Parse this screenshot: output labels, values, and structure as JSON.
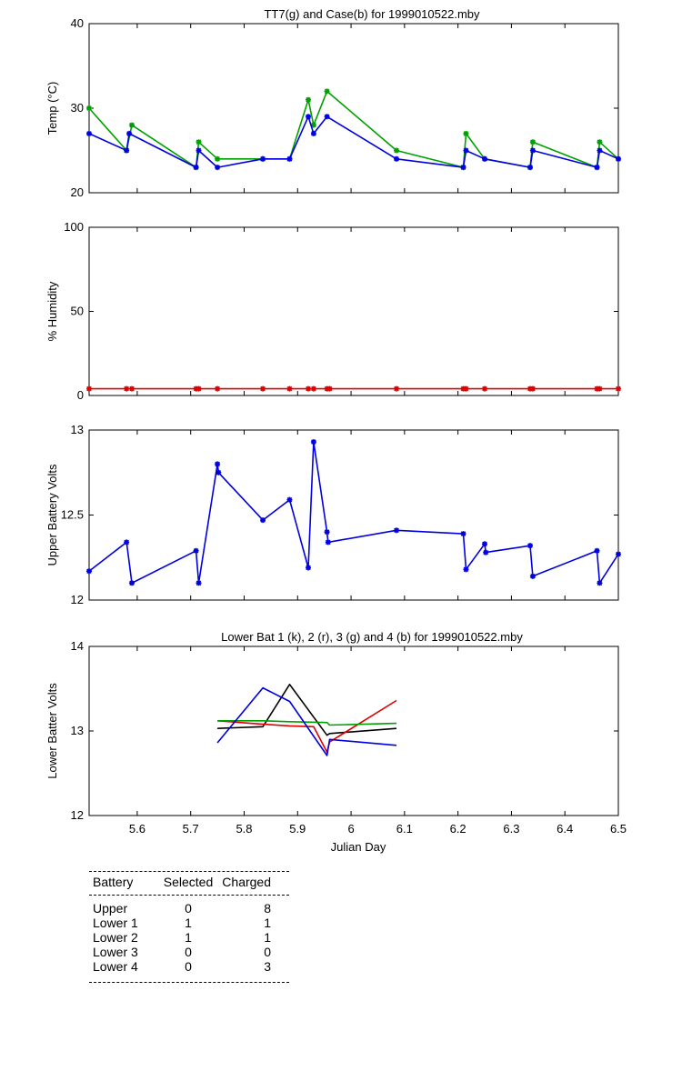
{
  "chart_data": [
    {
      "type": "line",
      "title": "TT7(g) and Case(b) for 1999010522.mby",
      "xlabel": "",
      "ylabel": "Temp (°C)",
      "xlim": [
        5.51,
        6.5
      ],
      "ylim": [
        20,
        40
      ],
      "yticks": [
        "20",
        "30",
        "40"
      ],
      "grid": false,
      "series": [
        {
          "color": "#00a000",
          "marker": "star",
          "points": [
            [
              5.51,
              30
            ],
            [
              5.58,
              25
            ],
            [
              5.59,
              28
            ],
            [
              5.71,
              23
            ],
            [
              5.715,
              26
            ],
            [
              5.75,
              24
            ],
            [
              5.835,
              24
            ],
            [
              5.885,
              24
            ],
            [
              5.92,
              31
            ],
            [
              5.93,
              28
            ],
            [
              5.955,
              32
            ],
            [
              6.085,
              25
            ],
            [
              6.21,
              23
            ],
            [
              6.215,
              27
            ],
            [
              6.25,
              24
            ],
            [
              6.335,
              23
            ],
            [
              6.34,
              26
            ],
            [
              6.46,
              23
            ],
            [
              6.465,
              26
            ],
            [
              6.5,
              24
            ]
          ]
        },
        {
          "color": "#0000e0",
          "marker": "star",
          "points": [
            [
              5.51,
              27
            ],
            [
              5.58,
              25
            ],
            [
              5.585,
              27
            ],
            [
              5.71,
              23
            ],
            [
              5.715,
              25
            ],
            [
              5.75,
              23
            ],
            [
              5.835,
              24
            ],
            [
              5.885,
              24
            ],
            [
              5.92,
              29
            ],
            [
              5.93,
              27
            ],
            [
              5.955,
              29
            ],
            [
              6.085,
              24
            ],
            [
              6.21,
              23
            ],
            [
              6.215,
              25
            ],
            [
              6.25,
              24
            ],
            [
              6.335,
              23
            ],
            [
              6.34,
              25
            ],
            [
              6.46,
              23
            ],
            [
              6.465,
              25
            ],
            [
              6.5,
              24
            ]
          ]
        }
      ]
    },
    {
      "type": "line",
      "title": "",
      "xlabel": "",
      "ylabel": "% Humidity",
      "xlim": [
        5.51,
        6.5
      ],
      "ylim": [
        0,
        100
      ],
      "yticks": [
        "0",
        "50",
        "100"
      ],
      "grid": false,
      "series": [
        {
          "color": "#e00000",
          "marker": "star",
          "points": [
            [
              5.51,
              4
            ],
            [
              5.58,
              4
            ],
            [
              5.59,
              4
            ],
            [
              5.71,
              4
            ],
            [
              5.715,
              4
            ],
            [
              5.75,
              4
            ],
            [
              5.835,
              4
            ],
            [
              5.885,
              4
            ],
            [
              5.92,
              4
            ],
            [
              5.93,
              4
            ],
            [
              5.955,
              4
            ],
            [
              5.96,
              4
            ],
            [
              6.085,
              4
            ],
            [
              6.21,
              4
            ],
            [
              6.215,
              4
            ],
            [
              6.25,
              4
            ],
            [
              6.335,
              4
            ],
            [
              6.34,
              4
            ],
            [
              6.46,
              4
            ],
            [
              6.465,
              4
            ],
            [
              6.5,
              4
            ]
          ]
        }
      ]
    },
    {
      "type": "line",
      "title": "",
      "xlabel": "",
      "ylabel": "Upper Battery Volts",
      "xlim": [
        5.51,
        6.5
      ],
      "ylim": [
        12,
        13
      ],
      "yticks": [
        "12",
        "12.5",
        "13"
      ],
      "grid": false,
      "series": [
        {
          "color": "#0000e0",
          "marker": "star",
          "points": [
            [
              5.51,
              12.17
            ],
            [
              5.58,
              12.34
            ],
            [
              5.59,
              12.1
            ],
            [
              5.71,
              12.29
            ],
            [
              5.715,
              12.1
            ],
            [
              5.75,
              12.8
            ],
            [
              5.752,
              12.75
            ],
            [
              5.835,
              12.47
            ],
            [
              5.885,
              12.59
            ],
            [
              5.92,
              12.19
            ],
            [
              5.93,
              12.93
            ],
            [
              5.955,
              12.4
            ],
            [
              5.957,
              12.34
            ],
            [
              6.085,
              12.41
            ],
            [
              6.21,
              12.39
            ],
            [
              6.215,
              12.18
            ],
            [
              6.25,
              12.33
            ],
            [
              6.252,
              12.28
            ],
            [
              6.335,
              12.32
            ],
            [
              6.34,
              12.14
            ],
            [
              6.46,
              12.29
            ],
            [
              6.465,
              12.1
            ],
            [
              6.5,
              12.27
            ]
          ]
        }
      ]
    },
    {
      "type": "line",
      "title": "Lower Bat 1 (k), 2 (r), 3 (g) and 4 (b) for 1999010522.mby",
      "xlabel": "Julian Day",
      "ylabel": "Lower Batter Volts",
      "xlim": [
        5.51,
        6.5
      ],
      "ylim": [
        12,
        14
      ],
      "yticks": [
        "12",
        "13",
        "14"
      ],
      "xticks": [
        "5.6",
        "5.7",
        "5.8",
        "5.9",
        "6",
        "6.1",
        "6.2",
        "6.3",
        "6.4",
        "6.5"
      ],
      "grid": false,
      "series": [
        {
          "color": "#000000",
          "marker": "none",
          "points": [
            [
              5.75,
              13.03
            ],
            [
              5.835,
              13.05
            ],
            [
              5.885,
              13.55
            ],
            [
              5.955,
              12.95
            ],
            [
              5.96,
              12.97
            ],
            [
              6.085,
              13.03
            ]
          ]
        },
        {
          "color": "#e00000",
          "marker": "none",
          "points": [
            [
              5.75,
              13.12
            ],
            [
              5.835,
              13.08
            ],
            [
              5.885,
              13.06
            ],
            [
              5.93,
              13.05
            ],
            [
              5.955,
              12.75
            ],
            [
              5.96,
              12.87
            ],
            [
              6.085,
              13.36
            ]
          ]
        },
        {
          "color": "#00a000",
          "marker": "none",
          "points": [
            [
              5.75,
              13.12
            ],
            [
              5.835,
              13.12
            ],
            [
              5.885,
              13.11
            ],
            [
              5.955,
              13.1
            ],
            [
              5.96,
              13.07
            ],
            [
              6.085,
              13.09
            ]
          ]
        },
        {
          "color": "#0000e0",
          "marker": "none",
          "points": [
            [
              5.75,
              12.86
            ],
            [
              5.835,
              13.51
            ],
            [
              5.885,
              13.35
            ],
            [
              5.955,
              12.71
            ],
            [
              5.96,
              12.9
            ],
            [
              6.085,
              12.83
            ]
          ]
        }
      ]
    }
  ],
  "summary": {
    "headers": [
      "Battery",
      "Selected",
      "Charged"
    ],
    "rows": [
      [
        "Upper",
        "0",
        "8"
      ],
      [
        "Lower 1",
        "1",
        "1"
      ],
      [
        "Lower 2",
        "1",
        "1"
      ],
      [
        "Lower 3",
        "0",
        "0"
      ],
      [
        "Lower 4",
        "0",
        "3"
      ]
    ]
  }
}
